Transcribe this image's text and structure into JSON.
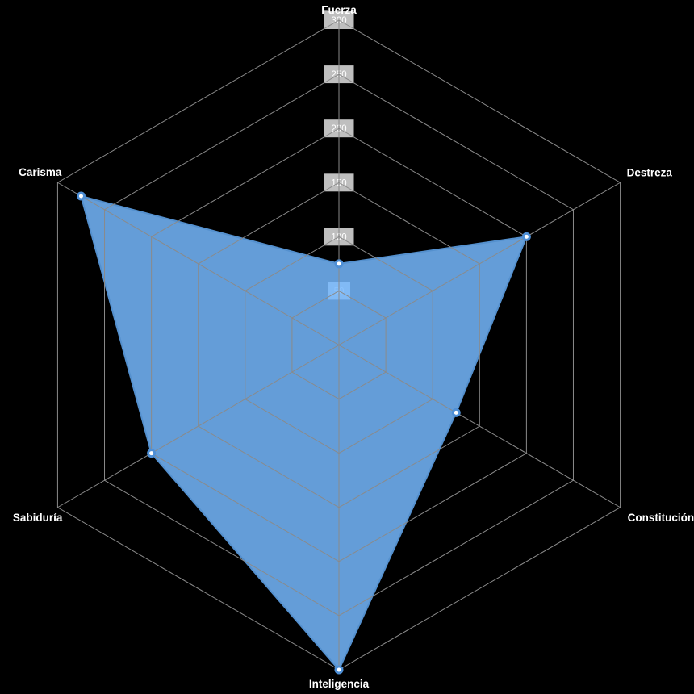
{
  "page": {
    "background_color": "#000000"
  },
  "chart_data": {
    "type": "radar",
    "categories": [
      "Fuerza",
      "Destreza",
      "Constitución",
      "Inteligencia",
      "Sabiduría",
      "Carisma"
    ],
    "values": [
      75,
      200,
      125,
      300,
      200,
      275
    ],
    "scale": {
      "min": 0,
      "max": 300,
      "step": 50,
      "tick_labels": [
        "50",
        "100",
        "150",
        "200",
        "250",
        "300"
      ]
    },
    "grid": {
      "shape": "hexagon",
      "levels": 6,
      "angle_lines": true,
      "grid_on": true
    },
    "legend": {
      "position": "none",
      "visible": false
    },
    "title": "",
    "colors": {
      "background": "#000000",
      "grid_line": "#8a8a8a",
      "axis_label": "#ffffff",
      "fill_base": "#76b8fe",
      "fill_effective_on_black": "#649cd8",
      "polygon_border": "#5490ce",
      "point_fill": "#ffffff",
      "point_border": "#4e8fd6",
      "tick_backdrop": "#ffffff",
      "tick_text": "#ffffff"
    }
  }
}
